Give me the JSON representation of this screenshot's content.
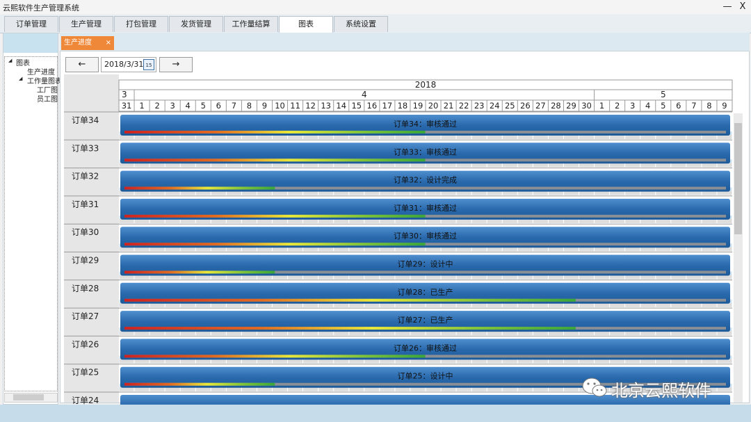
{
  "window": {
    "title": "云熙软件生产管理系统",
    "minimize": "—",
    "close": "X"
  },
  "main_tabs": [
    {
      "label": "订单管理",
      "active": false
    },
    {
      "label": "生产管理",
      "active": false
    },
    {
      "label": "打包管理",
      "active": false
    },
    {
      "label": "发货管理",
      "active": false
    },
    {
      "label": "工作量结算",
      "active": false
    },
    {
      "label": "图表",
      "active": true
    },
    {
      "label": "系统设置",
      "active": false
    }
  ],
  "tree": [
    {
      "label": "图表",
      "level": 0,
      "expander": "◢"
    },
    {
      "label": "生产进度",
      "level": 1
    },
    {
      "label": "工作量图表",
      "level": 1,
      "expander": "◢"
    },
    {
      "label": "工厂图",
      "level": 2
    },
    {
      "label": "员工图",
      "level": 2
    }
  ],
  "doc_tab": {
    "label": "生产进度",
    "close": "×"
  },
  "toolbar": {
    "prev": "←",
    "date": "2018/3/31",
    "cal_day": "15",
    "next": "→"
  },
  "gantt": {
    "year": "2018",
    "months": [
      {
        "label": "3",
        "days": [
          "31"
        ]
      },
      {
        "label": "4",
        "days": [
          "1",
          "2",
          "3",
          "4",
          "5",
          "6",
          "7",
          "8",
          "9",
          "10",
          "11",
          "12",
          "13",
          "14",
          "15",
          "16",
          "17",
          "18",
          "19",
          "20",
          "21",
          "22",
          "23",
          "24",
          "25",
          "26",
          "27",
          "28",
          "29",
          "30"
        ]
      },
      {
        "label": "5",
        "days": [
          "1",
          "2",
          "3",
          "4",
          "5",
          "6",
          "7",
          "8",
          "9"
        ]
      }
    ],
    "rows": [
      {
        "name": "订单34",
        "label": "订单34：审核通过",
        "progress": 0.5
      },
      {
        "name": "订单33",
        "label": "订单33：审核通过",
        "progress": 0.5
      },
      {
        "name": "订单32",
        "label": "订单32：设计完成",
        "progress": 0.25
      },
      {
        "name": "订单31",
        "label": "订单31：审核通过",
        "progress": 0.5
      },
      {
        "name": "订单30",
        "label": "订单30：审核通过",
        "progress": 0.5
      },
      {
        "name": "订单29",
        "label": "订单29：设计中",
        "progress": 0.25
      },
      {
        "name": "订单28",
        "label": "订单28：已生产",
        "progress": 0.75
      },
      {
        "name": "订单27",
        "label": "订单27：已生产",
        "progress": 0.75
      },
      {
        "name": "订单26",
        "label": "订单26：审核通过",
        "progress": 0.5
      },
      {
        "name": "订单25",
        "label": "订单25：设计中",
        "progress": 0.25
      },
      {
        "name": "订单24",
        "label": "",
        "progress": 0
      }
    ]
  },
  "watermark": {
    "text": "北京云熙软件"
  }
}
